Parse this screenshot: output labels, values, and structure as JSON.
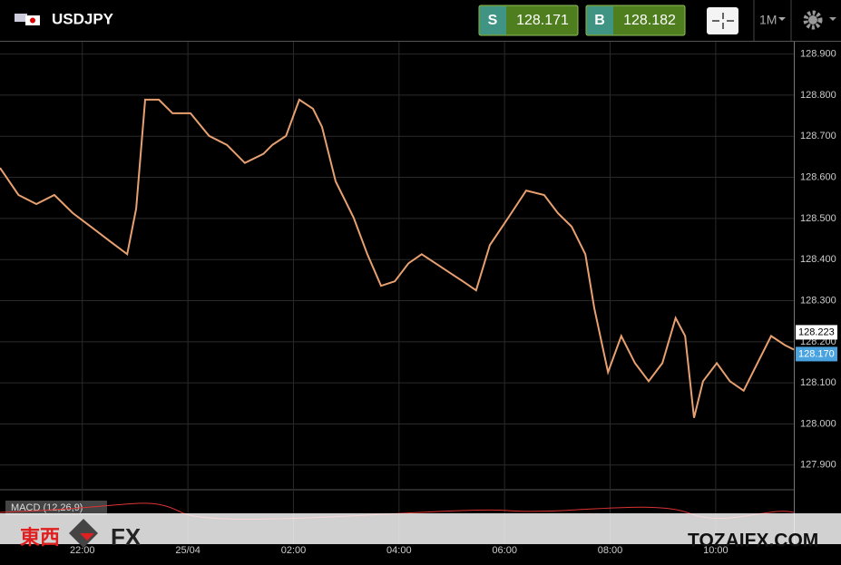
{
  "header": {
    "symbol": "USDJPY",
    "sell_tag": "S",
    "sell_price": "128.171",
    "buy_tag": "B",
    "buy_price": "128.182",
    "timeframe": "1M"
  },
  "chart": {
    "type": "line",
    "color": "#e8a070",
    "xlim": [
      -3.56,
      11.48
    ],
    "ylim": [
      127.84,
      128.93
    ],
    "yticks": [
      {
        "value": 127.9,
        "label": "127.900"
      },
      {
        "value": 128.0,
        "label": "128.000"
      },
      {
        "value": 128.1,
        "label": "128.100"
      },
      {
        "value": 128.2,
        "label": "128.200"
      },
      {
        "value": 128.3,
        "label": "128.300"
      },
      {
        "value": 128.4,
        "label": "128.400"
      },
      {
        "value": 128.5,
        "label": "128.500"
      },
      {
        "value": 128.6,
        "label": "128.600"
      },
      {
        "value": 128.7,
        "label": "128.700"
      },
      {
        "value": 128.8,
        "label": "128.800"
      },
      {
        "value": 128.9,
        "label": "128.900"
      }
    ],
    "xticks": [
      {
        "value": -2,
        "label": "22:00"
      },
      {
        "value": 0,
        "label": "25/04"
      },
      {
        "value": 2,
        "label": "02:00"
      },
      {
        "value": 4,
        "label": "04:00"
      },
      {
        "value": 6,
        "label": "06:00"
      },
      {
        "value": 8,
        "label": "08:00"
      },
      {
        "value": 10,
        "label": "10:00"
      }
    ],
    "grid": true,
    "series": [
      {
        "name": "USDJPY",
        "x": [
          -3.56,
          -3.21,
          -2.87,
          -2.53,
          -2.18,
          -1.84,
          -1.49,
          -1.15,
          -0.98,
          -0.81,
          -0.55,
          -0.29,
          0.05,
          0.4,
          0.74,
          1.08,
          1.43,
          1.6,
          1.86,
          2.11,
          2.37,
          2.54,
          2.8,
          3.14,
          3.4,
          3.66,
          3.92,
          4.18,
          4.43,
          4.69,
          4.95,
          5.21,
          5.46,
          5.72,
          6.07,
          6.41,
          6.75,
          7.01,
          7.27,
          7.53,
          7.7,
          7.96,
          8.21,
          8.47,
          8.73,
          8.99,
          9.24,
          9.42,
          9.59,
          9.76,
          10.02,
          10.27,
          10.53,
          10.79,
          11.05,
          11.31,
          11.48
        ],
        "values": [
          128.623,
          128.557,
          128.535,
          128.557,
          128.513,
          128.48,
          128.446,
          128.413,
          128.524,
          128.789,
          128.789,
          128.756,
          128.756,
          128.701,
          128.679,
          128.635,
          128.657,
          128.679,
          128.701,
          128.789,
          128.767,
          128.723,
          128.59,
          128.502,
          128.413,
          128.336,
          128.347,
          128.391,
          128.413,
          128.391,
          128.369,
          128.347,
          128.325,
          128.435,
          128.502,
          128.568,
          128.557,
          128.513,
          128.48,
          128.413,
          128.281,
          128.126,
          128.214,
          128.148,
          128.104,
          128.148,
          128.258,
          128.214,
          128.015,
          128.104,
          128.148,
          128.104,
          128.081,
          128.148,
          128.214,
          128.192,
          128.181
        ]
      }
    ],
    "price_markers": [
      {
        "value": 128.223,
        "label": "128.223",
        "color": "#ffffff"
      },
      {
        "value": 128.17,
        "label": "128.170",
        "color": "#4aa3df"
      }
    ],
    "indicator": "MACD (12,26,9)"
  },
  "watermark": {
    "logo_cn": "東西",
    "logo_fx": "FX",
    "site": "TOZAIFX.COM"
  }
}
